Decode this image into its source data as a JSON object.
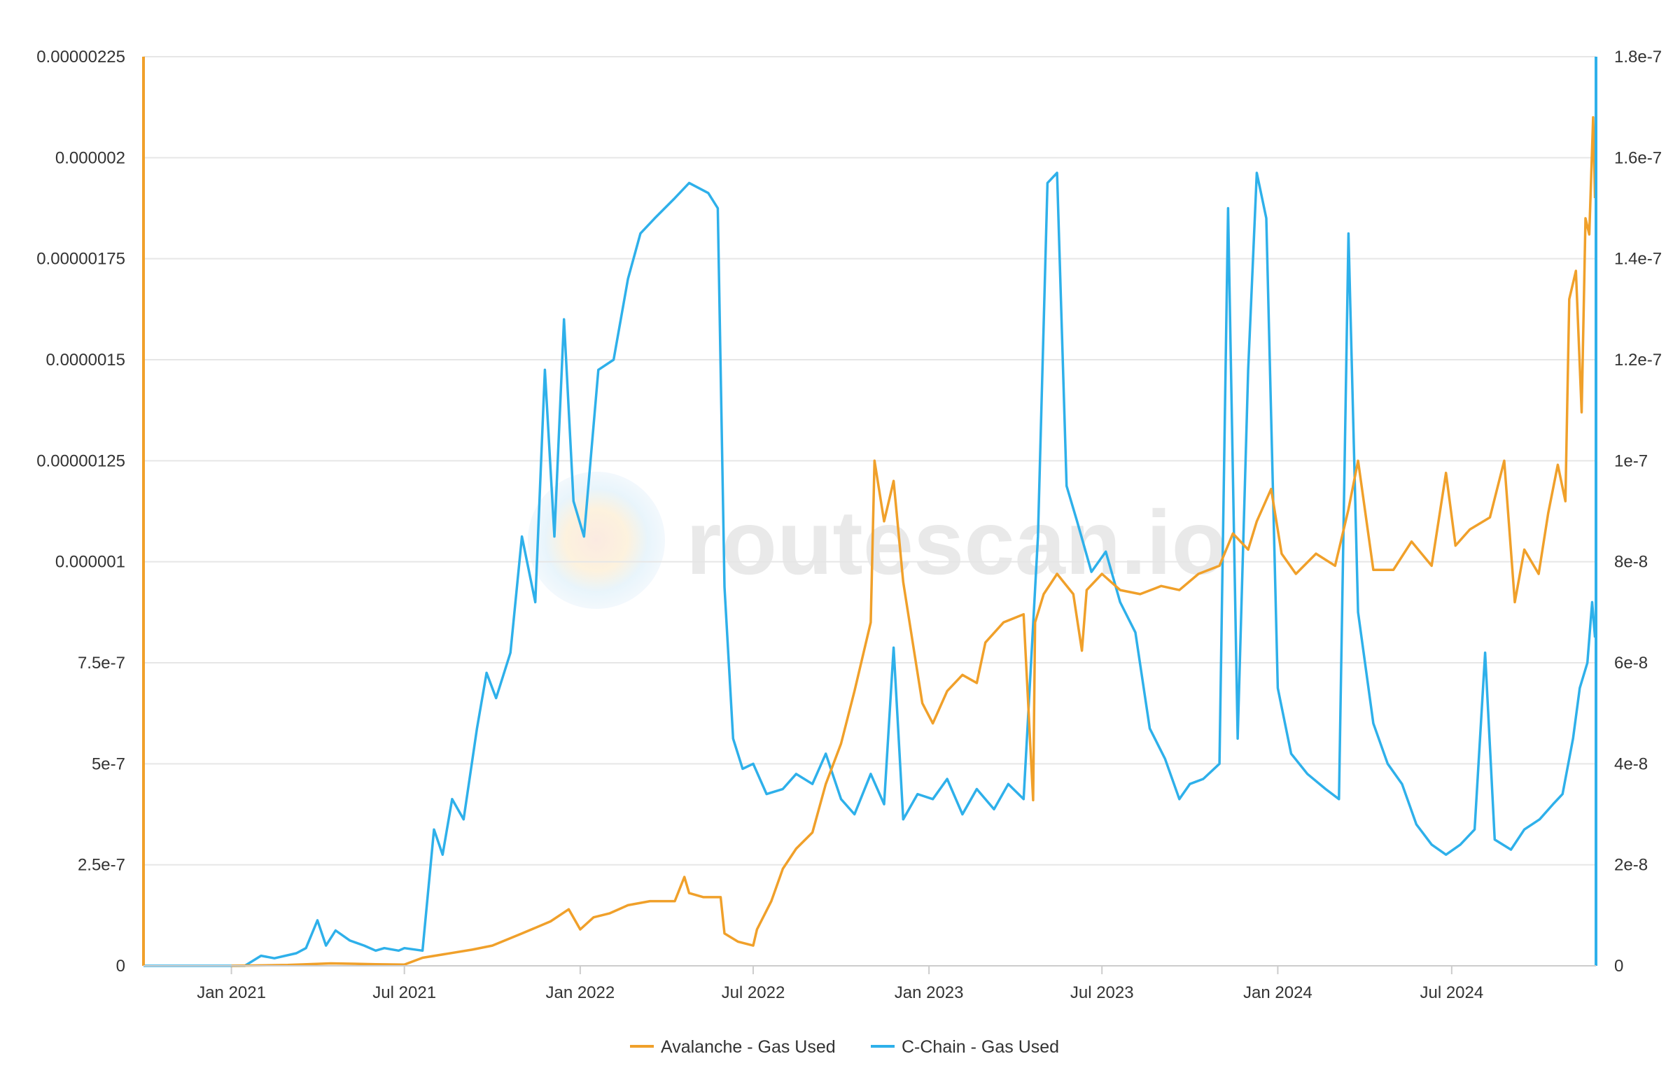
{
  "watermark": "routescan.io",
  "colors": {
    "avalanche": "#f0a02a",
    "cchain": "#2eb0ea",
    "grid": "#e6e6e6",
    "text": "#333333"
  },
  "chart_data": {
    "type": "line",
    "grid": true,
    "legend_position": "bottom-center",
    "x_axis": {
      "type": "date",
      "range": [
        "2020-10-01",
        "2024-11-29"
      ],
      "ticks": [
        {
          "label": "Jan 2021",
          "date": "2021-01-01"
        },
        {
          "label": "Jul 2021",
          "date": "2021-07-01"
        },
        {
          "label": "Jan 2022",
          "date": "2022-01-01"
        },
        {
          "label": "Jul 2022",
          "date": "2022-07-01"
        },
        {
          "label": "Jan 2023",
          "date": "2023-01-01"
        },
        {
          "label": "Jul 2023",
          "date": "2023-07-01"
        },
        {
          "label": "Jan 2024",
          "date": "2024-01-01"
        },
        {
          "label": "Jul 2024",
          "date": "2024-07-01"
        }
      ]
    },
    "y_axis_left": {
      "range": [
        0,
        2.25e-06
      ],
      "ticks": [
        {
          "label": "0",
          "value": 0
        },
        {
          "label": "2.5e-7",
          "value": 2.5e-07
        },
        {
          "label": "5e-7",
          "value": 5e-07
        },
        {
          "label": "7.5e-7",
          "value": 7.5e-07
        },
        {
          "label": "0.000001",
          "value": 1e-06
        },
        {
          "label": "0.00000125",
          "value": 1.25e-06
        },
        {
          "label": "0.0000015",
          "value": 1.5e-06
        },
        {
          "label": "0.00000175",
          "value": 1.75e-06
        },
        {
          "label": "0.000002",
          "value": 2e-06
        },
        {
          "label": "0.00000225",
          "value": 2.25e-06
        }
      ]
    },
    "y_axis_right": {
      "range": [
        0,
        1.8e-07
      ],
      "ticks": [
        {
          "label": "0",
          "value": 0
        },
        {
          "label": "2e-8",
          "value": 2e-08
        },
        {
          "label": "4e-8",
          "value": 4e-08
        },
        {
          "label": "6e-8",
          "value": 6e-08
        },
        {
          "label": "8e-8",
          "value": 8e-08
        },
        {
          "label": "1e-7",
          "value": 1e-07
        },
        {
          "label": "1.2e-7",
          "value": 1.2e-07
        },
        {
          "label": "1.4e-7",
          "value": 1.4e-07
        },
        {
          "label": "1.6e-7",
          "value": 1.6e-07
        },
        {
          "label": "1.8e-7",
          "value": 1.8e-07
        }
      ]
    },
    "series": [
      {
        "name": "Avalanche - Gas Used",
        "axis": "left",
        "color": "#f0a02a",
        "points": [
          [
            "2021-01-01",
            0.0
          ],
          [
            "2021-03-01",
            2e-09
          ],
          [
            "2021-04-15",
            6e-09
          ],
          [
            "2021-06-01",
            4e-09
          ],
          [
            "2021-07-01",
            3e-09
          ],
          [
            "2021-07-20",
            2e-08
          ],
          [
            "2021-08-15",
            3e-08
          ],
          [
            "2021-09-10",
            4e-08
          ],
          [
            "2021-10-01",
            5e-08
          ],
          [
            "2021-11-01",
            8e-08
          ],
          [
            "2021-12-01",
            1.1e-07
          ],
          [
            "2021-12-20",
            1.4e-07
          ],
          [
            "2022-01-01",
            9e-08
          ],
          [
            "2022-01-15",
            1.2e-07
          ],
          [
            "2022-02-01",
            1.3e-07
          ],
          [
            "2022-02-20",
            1.5e-07
          ],
          [
            "2022-03-15",
            1.6e-07
          ],
          [
            "2022-04-10",
            1.6e-07
          ],
          [
            "2022-04-20",
            2.2e-07
          ],
          [
            "2022-04-25",
            1.8e-07
          ],
          [
            "2022-05-10",
            1.7e-07
          ],
          [
            "2022-05-28",
            1.7e-07
          ],
          [
            "2022-06-01",
            8e-08
          ],
          [
            "2022-06-15",
            6e-08
          ],
          [
            "2022-07-01",
            5e-08
          ],
          [
            "2022-07-05",
            9e-08
          ],
          [
            "2022-07-20",
            1.6e-07
          ],
          [
            "2022-08-01",
            2.4e-07
          ],
          [
            "2022-08-15",
            2.9e-07
          ],
          [
            "2022-09-01",
            3.3e-07
          ],
          [
            "2022-09-15",
            4.5e-07
          ],
          [
            "2022-10-01",
            5.5e-07
          ],
          [
            "2022-10-15",
            6.8e-07
          ],
          [
            "2022-11-01",
            8.5e-07
          ],
          [
            "2022-11-05",
            1.25e-06
          ],
          [
            "2022-11-15",
            1.1e-06
          ],
          [
            "2022-11-25",
            1.2e-06
          ],
          [
            "2022-12-05",
            9.5e-07
          ],
          [
            "2022-12-15",
            8e-07
          ],
          [
            "2022-12-25",
            6.5e-07
          ],
          [
            "2023-01-05",
            6e-07
          ],
          [
            "2023-01-20",
            6.8e-07
          ],
          [
            "2023-02-05",
            7.2e-07
          ],
          [
            "2023-02-20",
            7e-07
          ],
          [
            "2023-03-01",
            8e-07
          ],
          [
            "2023-03-20",
            8.5e-07
          ],
          [
            "2023-04-10",
            8.7e-07
          ],
          [
            "2023-04-20",
            4.1e-07
          ],
          [
            "2023-04-22",
            8.5e-07
          ],
          [
            "2023-05-01",
            9.2e-07
          ],
          [
            "2023-05-15",
            9.7e-07
          ],
          [
            "2023-06-01",
            9.2e-07
          ],
          [
            "2023-06-10",
            7.8e-07
          ],
          [
            "2023-06-15",
            9.3e-07
          ],
          [
            "2023-07-01",
            9.7e-07
          ],
          [
            "2023-07-20",
            9.3e-07
          ],
          [
            "2023-08-10",
            9.2e-07
          ],
          [
            "2023-09-01",
            9.4e-07
          ],
          [
            "2023-09-20",
            9.3e-07
          ],
          [
            "2023-10-10",
            9.7e-07
          ],
          [
            "2023-11-01",
            9.9e-07
          ],
          [
            "2023-11-15",
            1.07e-06
          ],
          [
            "2023-12-01",
            1.03e-06
          ],
          [
            "2023-12-10",
            1.1e-06
          ],
          [
            "2023-12-25",
            1.18e-06
          ],
          [
            "2024-01-05",
            1.02e-06
          ],
          [
            "2024-01-20",
            9.7e-07
          ],
          [
            "2024-02-10",
            1.02e-06
          ],
          [
            "2024-03-01",
            9.9e-07
          ],
          [
            "2024-03-15",
            1.13e-06
          ],
          [
            "2024-03-25",
            1.25e-06
          ],
          [
            "2024-04-10",
            9.8e-07
          ],
          [
            "2024-05-01",
            9.8e-07
          ],
          [
            "2024-05-20",
            1.05e-06
          ],
          [
            "2024-06-10",
            9.9e-07
          ],
          [
            "2024-06-25",
            1.22e-06
          ],
          [
            "2024-07-05",
            1.04e-06
          ],
          [
            "2024-07-20",
            1.08e-06
          ],
          [
            "2024-08-10",
            1.11e-06
          ],
          [
            "2024-08-25",
            1.25e-06
          ],
          [
            "2024-09-05",
            9e-07
          ],
          [
            "2024-09-15",
            1.03e-06
          ],
          [
            "2024-09-30",
            9.7e-07
          ],
          [
            "2024-10-10",
            1.12e-06
          ],
          [
            "2024-10-20",
            1.24e-06
          ],
          [
            "2024-10-28",
            1.15e-06
          ],
          [
            "2024-11-01",
            1.65e-06
          ],
          [
            "2024-11-08",
            1.72e-06
          ],
          [
            "2024-11-14",
            1.37e-06
          ],
          [
            "2024-11-18",
            1.85e-06
          ],
          [
            "2024-11-22",
            1.81e-06
          ],
          [
            "2024-11-26",
            2.1e-06
          ],
          [
            "2024-11-28",
            1.9e-06
          ]
        ]
      },
      {
        "name": "C-Chain - Gas Used",
        "axis": "right",
        "color": "#2eb0ea",
        "points": [
          [
            "2020-10-01",
            0.0
          ],
          [
            "2020-12-01",
            0.0
          ],
          [
            "2021-01-15",
            0.0
          ],
          [
            "2021-02-01",
            2e-09
          ],
          [
            "2021-02-15",
            1.5e-09
          ],
          [
            "2021-03-10",
            2.5e-09
          ],
          [
            "2021-03-20",
            3.5e-09
          ],
          [
            "2021-04-01",
            9e-09
          ],
          [
            "2021-04-10",
            4e-09
          ],
          [
            "2021-04-20",
            7e-09
          ],
          [
            "2021-05-05",
            5e-09
          ],
          [
            "2021-05-20",
            4e-09
          ],
          [
            "2021-06-01",
            3e-09
          ],
          [
            "2021-06-10",
            3.5e-09
          ],
          [
            "2021-06-25",
            3e-09
          ],
          [
            "2021-07-01",
            3.5e-09
          ],
          [
            "2021-07-20",
            3e-09
          ],
          [
            "2021-08-01",
            2.7e-08
          ],
          [
            "2021-08-10",
            2.2e-08
          ],
          [
            "2021-08-20",
            3.3e-08
          ],
          [
            "2021-09-01",
            2.9e-08
          ],
          [
            "2021-09-15",
            4.7e-08
          ],
          [
            "2021-09-25",
            5.8e-08
          ],
          [
            "2021-10-05",
            5.3e-08
          ],
          [
            "2021-10-20",
            6.2e-08
          ],
          [
            "2021-11-01",
            8.5e-08
          ],
          [
            "2021-11-15",
            7.2e-08
          ],
          [
            "2021-11-25",
            1.18e-07
          ],
          [
            "2021-12-05",
            8.5e-08
          ],
          [
            "2021-12-15",
            1.28e-07
          ],
          [
            "2021-12-25",
            9.2e-08
          ],
          [
            "2022-01-05",
            8.5e-08
          ],
          [
            "2022-01-20",
            1.18e-07
          ],
          [
            "2022-02-05",
            1.2e-07
          ],
          [
            "2022-02-20",
            1.36e-07
          ],
          [
            "2022-03-05",
            1.45e-07
          ],
          [
            "2022-03-20",
            1.48e-07
          ],
          [
            "2022-04-10",
            1.52e-07
          ],
          [
            "2022-04-25",
            1.55e-07
          ],
          [
            "2022-05-15",
            1.53e-07
          ],
          [
            "2022-05-25",
            1.5e-07
          ],
          [
            "2022-06-01",
            7.5e-08
          ],
          [
            "2022-06-10",
            4.5e-08
          ],
          [
            "2022-06-20",
            3.9e-08
          ],
          [
            "2022-07-01",
            4e-08
          ],
          [
            "2022-07-15",
            3.4e-08
          ],
          [
            "2022-08-01",
            3.5e-08
          ],
          [
            "2022-08-15",
            3.8e-08
          ],
          [
            "2022-09-01",
            3.6e-08
          ],
          [
            "2022-09-15",
            4.2e-08
          ],
          [
            "2022-10-01",
            3.3e-08
          ],
          [
            "2022-10-15",
            3e-08
          ],
          [
            "2022-11-01",
            3.8e-08
          ],
          [
            "2022-11-15",
            3.2e-08
          ],
          [
            "2022-11-25",
            6.3e-08
          ],
          [
            "2022-12-05",
            2.9e-08
          ],
          [
            "2022-12-20",
            3.4e-08
          ],
          [
            "2023-01-05",
            3.3e-08
          ],
          [
            "2023-01-20",
            3.7e-08
          ],
          [
            "2023-02-05",
            3e-08
          ],
          [
            "2023-02-20",
            3.5e-08
          ],
          [
            "2023-03-10",
            3.1e-08
          ],
          [
            "2023-03-25",
            3.6e-08
          ],
          [
            "2023-04-10",
            3.3e-08
          ],
          [
            "2023-04-25",
            8.5e-08
          ],
          [
            "2023-05-05",
            1.55e-07
          ],
          [
            "2023-05-15",
            1.57e-07
          ],
          [
            "2023-05-25",
            9.5e-08
          ],
          [
            "2023-06-05",
            8.8e-08
          ],
          [
            "2023-06-20",
            7.8e-08
          ],
          [
            "2023-07-05",
            8.2e-08
          ],
          [
            "2023-07-20",
            7.2e-08
          ],
          [
            "2023-08-05",
            6.6e-08
          ],
          [
            "2023-08-20",
            4.7e-08
          ],
          [
            "2023-09-05",
            4.1e-08
          ],
          [
            "2023-09-20",
            3.3e-08
          ],
          [
            "2023-10-01",
            3.6e-08
          ],
          [
            "2023-10-15",
            3.7e-08
          ],
          [
            "2023-11-01",
            4e-08
          ],
          [
            "2023-11-10",
            1.5e-07
          ],
          [
            "2023-11-20",
            4.5e-08
          ],
          [
            "2023-12-01",
            1.18e-07
          ],
          [
            "2023-12-10",
            1.57e-07
          ],
          [
            "2023-12-20",
            1.48e-07
          ],
          [
            "2024-01-01",
            5.5e-08
          ],
          [
            "2024-01-15",
            4.2e-08
          ],
          [
            "2024-02-01",
            3.8e-08
          ],
          [
            "2024-02-20",
            3.5e-08
          ],
          [
            "2024-03-05",
            3.3e-08
          ],
          [
            "2024-03-15",
            1.45e-07
          ],
          [
            "2024-03-25",
            7e-08
          ],
          [
            "2024-04-10",
            4.8e-08
          ],
          [
            "2024-04-25",
            4e-08
          ],
          [
            "2024-05-10",
            3.6e-08
          ],
          [
            "2024-05-25",
            2.8e-08
          ],
          [
            "2024-06-10",
            2.4e-08
          ],
          [
            "2024-06-25",
            2.2e-08
          ],
          [
            "2024-07-10",
            2.4e-08
          ],
          [
            "2024-07-25",
            2.7e-08
          ],
          [
            "2024-08-05",
            6.2e-08
          ],
          [
            "2024-08-15",
            2.5e-08
          ],
          [
            "2024-09-01",
            2.3e-08
          ],
          [
            "2024-09-15",
            2.7e-08
          ],
          [
            "2024-10-01",
            2.9e-08
          ],
          [
            "2024-10-15",
            3.2e-08
          ],
          [
            "2024-10-25",
            3.4e-08
          ],
          [
            "2024-11-05",
            4.5e-08
          ],
          [
            "2024-11-12",
            5.5e-08
          ],
          [
            "2024-11-20",
            6e-08
          ],
          [
            "2024-11-25",
            7.2e-08
          ],
          [
            "2024-11-28",
            6.5e-08
          ]
        ]
      }
    ]
  }
}
